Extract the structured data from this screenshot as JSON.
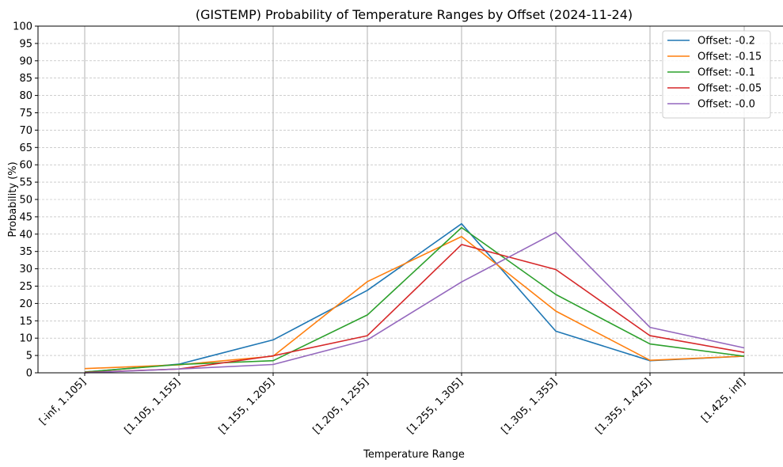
{
  "chart_data": {
    "type": "line",
    "title": "(GISTEMP) Probability of Temperature Ranges by Offset (2024-11-24)",
    "xlabel": "Temperature Range",
    "ylabel": "Probability (%)",
    "ylim": [
      0,
      100
    ],
    "yticks": [
      0,
      5,
      10,
      15,
      20,
      25,
      30,
      35,
      40,
      45,
      50,
      55,
      60,
      65,
      70,
      75,
      80,
      85,
      90,
      95,
      100
    ],
    "categories": [
      "[-inf, 1.105]",
      "[1.105, 1.155]",
      "[1.155, 1.205]",
      "[1.205, 1.255]",
      "[1.255, 1.305]",
      "[1.305, 1.355]",
      "[1.355, 1.425]",
      "[1.425, inf]"
    ],
    "grid": "on",
    "legend_position": "top-right",
    "series": [
      {
        "name": "Offset: -0.2",
        "color": "#1f77b4",
        "values": [
          0.2,
          2.5,
          9.5,
          23.8,
          43.0,
          12.0,
          3.5,
          4.8
        ]
      },
      {
        "name": "Offset: -0.15",
        "color": "#ff7f0e",
        "values": [
          1.2,
          2.3,
          4.8,
          26.3,
          39.3,
          17.8,
          3.6,
          4.8
        ]
      },
      {
        "name": "Offset: -0.1",
        "color": "#2ca02c",
        "values": [
          0.2,
          2.4,
          3.5,
          16.7,
          41.9,
          22.6,
          8.3,
          4.8
        ]
      },
      {
        "name": "Offset: -0.05",
        "color": "#d62728",
        "values": [
          0.1,
          1.1,
          4.9,
          10.7,
          37.0,
          29.8,
          10.7,
          5.9
        ]
      },
      {
        "name": "Offset: -0.0",
        "color": "#9467bd",
        "values": [
          0.0,
          1.1,
          2.4,
          9.5,
          26.2,
          40.5,
          13.1,
          7.2
        ]
      }
    ]
  }
}
